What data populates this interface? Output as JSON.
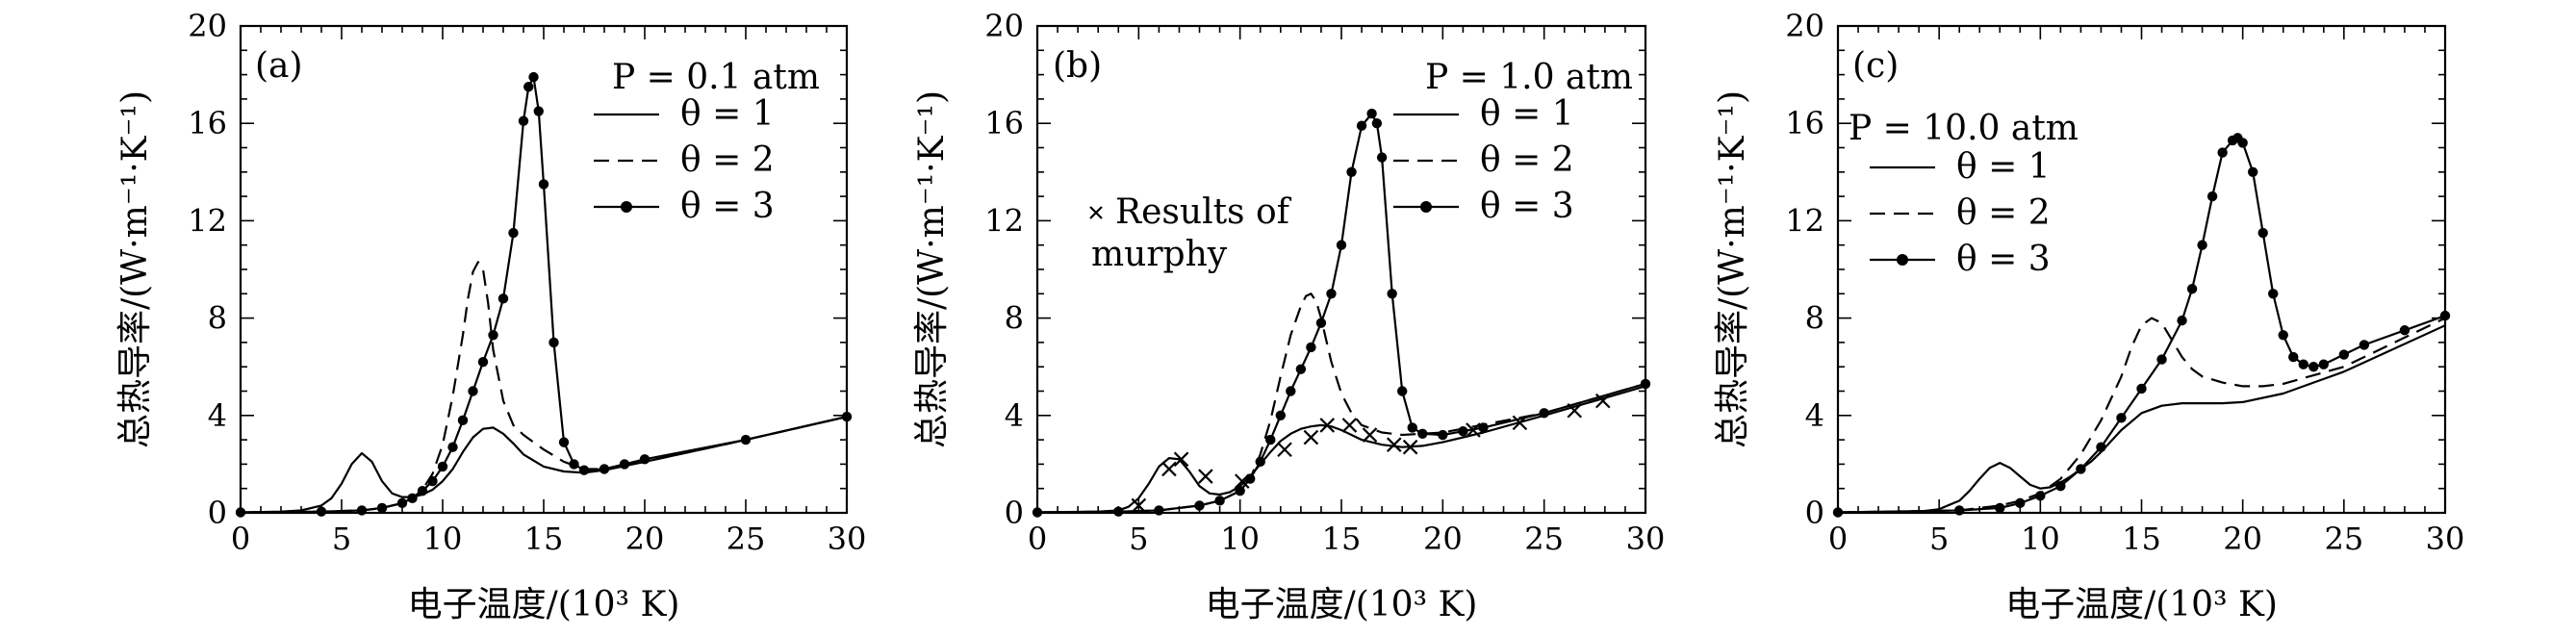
{
  "figure": {
    "xlabel": "电子温度/(10³ K)",
    "ylabel": "总热导率/(W·m⁻¹·K⁻¹)",
    "xlim": [
      0,
      30
    ],
    "ylim": [
      0,
      20
    ],
    "xticks": [
      "0",
      "5",
      "10",
      "15",
      "20",
      "25",
      "30"
    ],
    "yticks": [
      "0",
      "4",
      "8",
      "12",
      "16",
      "20"
    ],
    "series_legend": [
      {
        "name": "θ = 1",
        "style": "solid"
      },
      {
        "name": "θ = 2",
        "style": "dashed"
      },
      {
        "name": "θ = 3",
        "style": "dots"
      }
    ]
  },
  "chart_data": [
    {
      "type": "line",
      "panel_label": "(a)",
      "pressure_label": "P = 0.1 atm",
      "title": "",
      "xlabel": "电子温度/(10³ K)",
      "ylabel": "总热导率/(W·m⁻¹·K⁻¹)",
      "xlim": [
        0,
        30
      ],
      "ylim": [
        0,
        20
      ],
      "series": [
        {
          "name": "θ = 1",
          "style": "solid",
          "x": [
            0,
            2,
            3,
            4,
            4.5,
            5,
            5.5,
            6,
            6.5,
            7,
            7.5,
            8,
            8.5,
            9,
            9.5,
            10,
            10.5,
            11,
            11.5,
            12,
            12.5,
            13,
            13.5,
            14,
            15,
            16,
            17,
            18,
            20,
            25,
            30
          ],
          "y": [
            0.02,
            0.05,
            0.1,
            0.3,
            0.6,
            1.2,
            2.0,
            2.45,
            2.1,
            1.3,
            0.8,
            0.65,
            0.65,
            0.75,
            0.95,
            1.3,
            1.8,
            2.5,
            3.1,
            3.45,
            3.5,
            3.25,
            2.85,
            2.4,
            1.9,
            1.7,
            1.65,
            1.75,
            2.1,
            3.0,
            3.95
          ]
        },
        {
          "name": "θ = 2",
          "style": "dashed",
          "x": [
            0,
            4,
            6,
            7,
            8,
            8.5,
            9,
            9.5,
            10,
            10.5,
            11,
            11.25,
            11.5,
            11.75,
            12,
            12.25,
            12.5,
            13,
            13.5,
            14,
            14.5,
            15,
            16,
            17,
            18,
            20,
            25,
            30
          ],
          "y": [
            0.02,
            0.05,
            0.1,
            0.2,
            0.4,
            0.6,
            0.95,
            1.6,
            2.8,
            4.8,
            7.3,
            8.8,
            9.9,
            10.3,
            10.0,
            8.6,
            6.7,
            4.6,
            3.6,
            3.2,
            2.9,
            2.6,
            2.1,
            1.8,
            1.8,
            2.1,
            3.0,
            3.95
          ]
        },
        {
          "name": "θ = 3",
          "style": "dots",
          "x": [
            0,
            4,
            6,
            7,
            8,
            8.5,
            9,
            9.5,
            10,
            10.5,
            11,
            11.5,
            12,
            12.5,
            13,
            13.5,
            14,
            14.25,
            14.5,
            14.75,
            15,
            15.5,
            16,
            16.5,
            17,
            18,
            19,
            20,
            25,
            30
          ],
          "y": [
            0.02,
            0.05,
            0.1,
            0.2,
            0.4,
            0.6,
            0.9,
            1.3,
            1.9,
            2.7,
            3.8,
            5.0,
            6.2,
            7.3,
            8.8,
            11.5,
            16.1,
            17.5,
            17.9,
            16.5,
            13.5,
            7.0,
            2.9,
            2.0,
            1.75,
            1.8,
            2.0,
            2.2,
            3.0,
            3.95
          ]
        }
      ],
      "annotations": []
    },
    {
      "type": "line",
      "panel_label": "(b)",
      "pressure_label": "P = 1.0 atm",
      "title": "",
      "xlabel": "电子温度/(10³ K)",
      "ylabel": "总热导率/(W·m⁻¹·K⁻¹)",
      "xlim": [
        0,
        30
      ],
      "ylim": [
        0,
        20
      ],
      "series": [
        {
          "name": "θ = 1",
          "style": "solid",
          "x": [
            0,
            3,
            4,
            4.5,
            5,
            5.5,
            6,
            6.5,
            7,
            7.5,
            8,
            8.5,
            9,
            9.5,
            10,
            10.5,
            11,
            11.5,
            12,
            12.5,
            13,
            13.5,
            14,
            14.5,
            15,
            15.5,
            16,
            17,
            18,
            19,
            20,
            22,
            25,
            30
          ],
          "y": [
            0.02,
            0.05,
            0.1,
            0.25,
            0.6,
            1.2,
            1.9,
            2.25,
            2.2,
            1.7,
            1.1,
            0.8,
            0.75,
            0.85,
            1.1,
            1.5,
            2.0,
            2.5,
            2.95,
            3.25,
            3.45,
            3.55,
            3.6,
            3.55,
            3.4,
            3.2,
            3.0,
            2.8,
            2.7,
            2.75,
            2.9,
            3.3,
            4.0,
            5.2
          ]
        },
        {
          "name": "θ = 2",
          "style": "dashed",
          "x": [
            0,
            4,
            6,
            7,
            8,
            9,
            10,
            10.5,
            11,
            11.5,
            12,
            12.5,
            13,
            13.25,
            13.5,
            13.75,
            14,
            14.5,
            15,
            15.5,
            16,
            17,
            18,
            20,
            25,
            30
          ],
          "y": [
            0.02,
            0.05,
            0.1,
            0.2,
            0.3,
            0.5,
            0.9,
            1.4,
            2.4,
            3.8,
            5.6,
            7.3,
            8.5,
            8.9,
            9.0,
            8.7,
            8.0,
            6.2,
            4.9,
            4.1,
            3.6,
            3.3,
            3.2,
            3.3,
            4.1,
            5.3
          ]
        },
        {
          "name": "θ = 3",
          "style": "dots",
          "x": [
            0,
            4,
            6,
            8,
            9,
            10,
            10.5,
            11,
            11.5,
            12,
            12.5,
            13,
            13.5,
            14,
            14.5,
            15,
            15.5,
            16,
            16.5,
            16.75,
            17,
            17.5,
            18,
            18.5,
            19,
            20,
            21,
            22,
            25,
            30
          ],
          "y": [
            0.02,
            0.05,
            0.1,
            0.3,
            0.5,
            0.9,
            1.4,
            2.1,
            3.0,
            4.0,
            5.0,
            5.9,
            6.8,
            7.8,
            9.0,
            11.0,
            14.0,
            15.9,
            16.4,
            16.0,
            14.6,
            9.0,
            5.0,
            3.5,
            3.25,
            3.2,
            3.35,
            3.5,
            4.1,
            5.3
          ]
        },
        {
          "name": "Results of murphy",
          "style": "markers-x",
          "x": [
            5.0,
            6.5,
            7.1,
            8.3,
            10.1,
            12.2,
            13.5,
            14.3,
            15.4,
            16.4,
            17.6,
            18.4,
            21.5,
            23.8,
            26.5,
            27.9
          ],
          "y": [
            0.3,
            1.8,
            2.2,
            1.5,
            1.3,
            2.6,
            3.1,
            3.6,
            3.6,
            3.2,
            2.8,
            2.7,
            3.4,
            3.7,
            4.2,
            4.6
          ]
        }
      ],
      "annotations": [
        "Results of",
        "murphy"
      ]
    },
    {
      "type": "line",
      "panel_label": "(c)",
      "pressure_label": "P = 10.0 atm",
      "title": "",
      "xlabel": "电子温度/(10³ K)",
      "ylabel": "总热导率/(W·m⁻¹·K⁻¹)",
      "xlim": [
        0,
        30
      ],
      "ylim": [
        0,
        20
      ],
      "series": [
        {
          "name": "θ = 1",
          "style": "solid",
          "x": [
            0,
            4,
            5,
            6,
            6.5,
            7,
            7.5,
            8,
            8.5,
            9,
            9.5,
            10,
            10.5,
            11,
            11.5,
            12,
            12.5,
            13,
            14,
            15,
            16,
            17,
            18,
            19,
            20,
            22,
            25,
            30
          ],
          "y": [
            0.02,
            0.05,
            0.15,
            0.5,
            0.9,
            1.4,
            1.85,
            2.05,
            1.85,
            1.5,
            1.15,
            1.0,
            1.05,
            1.25,
            1.5,
            1.8,
            2.1,
            2.5,
            3.4,
            4.1,
            4.4,
            4.5,
            4.5,
            4.5,
            4.55,
            4.9,
            5.8,
            7.7
          ]
        },
        {
          "name": "θ = 2",
          "style": "dashed",
          "x": [
            0,
            6,
            8,
            9,
            10,
            11,
            12,
            13,
            14,
            14.5,
            15,
            15.5,
            16,
            16.5,
            17,
            17.5,
            18,
            19,
            20,
            21,
            22,
            25,
            30
          ],
          "y": [
            0.02,
            0.1,
            0.3,
            0.5,
            0.8,
            1.4,
            2.4,
            3.8,
            5.6,
            6.8,
            7.7,
            8.0,
            7.8,
            7.1,
            6.4,
            5.9,
            5.6,
            5.35,
            5.2,
            5.2,
            5.3,
            6.0,
            8.0
          ]
        },
        {
          "name": "θ = 3",
          "style": "dots",
          "x": [
            0,
            6,
            8,
            9,
            10,
            11,
            12,
            13,
            14,
            15,
            16,
            17,
            17.5,
            18,
            18.5,
            19,
            19.5,
            19.75,
            20,
            20.5,
            21,
            21.5,
            22,
            22.5,
            23,
            23.5,
            24,
            25,
            26,
            28,
            30
          ],
          "y": [
            0.02,
            0.1,
            0.2,
            0.4,
            0.7,
            1.1,
            1.8,
            2.7,
            3.9,
            5.1,
            6.3,
            7.9,
            9.2,
            11.0,
            13.0,
            14.8,
            15.3,
            15.4,
            15.2,
            14.0,
            11.5,
            9.0,
            7.3,
            6.4,
            6.1,
            6.0,
            6.1,
            6.5,
            6.9,
            7.5,
            8.1
          ]
        }
      ],
      "annotations": []
    }
  ]
}
